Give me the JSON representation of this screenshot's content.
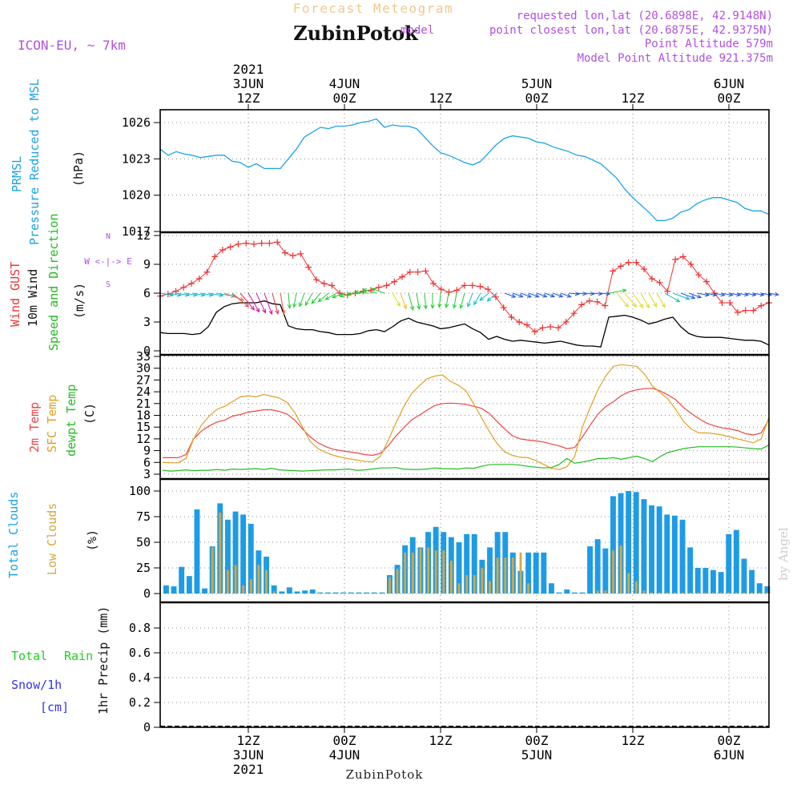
{
  "header": {
    "super_title": "Forecast Meteogram",
    "title": "ZubinPotok",
    "model": "ICON-EU, ~ 7km",
    "requested": "requested lon,lat (20.6898E, 42.9148N)",
    "closest": "point closest lon,lat (20.6875E, 42.9375N)",
    "point_alt": "Point Altitude 579m",
    "model_alt": "Model Point Altitude 921.375m",
    "overlap_text": "model",
    "watermark": "by Angel",
    "footer_name": "ZubinPotok"
  },
  "colors": {
    "pressure": "#1aa3e8",
    "gust": "#ee3333",
    "wind": "#000000",
    "t2m": "#ee4444",
    "tsfc": "#e0a020",
    "dewpt": "#22bb22",
    "total_cloud": "#1e9be6",
    "low_cloud": "#d4a840",
    "rain": "#22cc22",
    "snow": "#3333ee",
    "purple": "#b050e0",
    "grid": "#888888"
  },
  "time_axis": {
    "top_ticks": [
      {
        "t": 12,
        "lines": [
          "2021",
          "3JUN",
          "12Z"
        ]
      },
      {
        "t": 24,
        "lines": [
          "4JUN",
          "00Z"
        ]
      },
      {
        "t": 36,
        "lines": [
          "12Z"
        ]
      },
      {
        "t": 48,
        "lines": [
          "5JUN",
          "00Z"
        ]
      },
      {
        "t": 60,
        "lines": [
          "12Z"
        ]
      },
      {
        "t": 72,
        "lines": [
          "6JUN",
          "00Z"
        ]
      }
    ],
    "bottom_ticks": [
      {
        "t": 12,
        "lines": [
          "12Z",
          "3JUN",
          "2021"
        ]
      },
      {
        "t": 24,
        "lines": [
          "00Z",
          "4JUN"
        ]
      },
      {
        "t": 36,
        "lines": [
          "12Z"
        ]
      },
      {
        "t": 48,
        "lines": [
          "00Z",
          "5JUN"
        ]
      },
      {
        "t": 60,
        "lines": [
          "12Z"
        ]
      },
      {
        "t": 72,
        "lines": [
          "00Z",
          "6JUN"
        ]
      }
    ]
  },
  "panels": {
    "pressure": {
      "labels": [
        "PRMSL",
        "Pressure Reduced to MSL"
      ],
      "units": "(hPa)"
    },
    "wind": {
      "labels": [
        "Wind GUST",
        "10m Wind",
        "Speed and Direction"
      ],
      "units": "(m/s)",
      "compass": [
        "N",
        "W <-|-> E",
        "S"
      ]
    },
    "temp": {
      "labels": [
        "2m Temp",
        "SFC Temp",
        "dewpt Temp"
      ],
      "units": "(C)"
    },
    "cloud": {
      "labels": [
        "Total Clouds",
        "Low Clouds"
      ],
      "units": "(%)"
    },
    "precip": {
      "label_total": "Total",
      "label_rain": "Rain",
      "label_snow": "Snow/1h",
      "label_cm": "[cm]",
      "units": "1hr Precip (mm)"
    }
  },
  "chart_data": [
    {
      "type": "line",
      "title": "PRMSL Pressure Reduced to MSL",
      "ylabel": "(hPa)",
      "ylim": [
        1017,
        1027.5
      ],
      "yticks": [
        1017,
        1020,
        1023,
        1026
      ],
      "x_range": [
        1,
        77
      ],
      "series": [
        {
          "name": "PRMSL",
          "x": [
            1,
            2,
            3,
            4,
            5,
            6,
            7,
            8,
            9,
            10,
            11,
            12,
            13,
            14,
            15,
            16,
            17,
            18,
            19,
            20,
            21,
            22,
            23,
            24,
            25,
            26,
            27,
            28,
            29,
            30,
            31,
            32,
            33,
            34,
            35,
            36,
            37,
            38,
            39,
            40,
            41,
            42,
            43,
            44,
            45,
            46,
            47,
            48,
            49,
            50,
            51,
            52,
            53,
            54,
            55,
            56,
            57,
            58,
            59,
            60,
            61,
            62,
            63,
            64,
            65,
            66,
            67,
            68,
            69,
            70,
            71,
            72,
            73,
            74,
            75,
            76,
            77
          ],
          "values": [
            1023.8,
            1023.3,
            1023.6,
            1023.4,
            1023.3,
            1023.1,
            1023.2,
            1023.3,
            1023.3,
            1022.8,
            1022.7,
            1022.3,
            1022.6,
            1022.2,
            1022.2,
            1022.2,
            1023.0,
            1023.8,
            1024.8,
            1025.2,
            1025.6,
            1025.5,
            1025.7,
            1025.7,
            1025.8,
            1026.0,
            1026.1,
            1026.3,
            1025.6,
            1025.8,
            1025.7,
            1025.7,
            1025.5,
            1024.8,
            1024.1,
            1023.5,
            1023.3,
            1023.0,
            1022.7,
            1022.5,
            1022.8,
            1023.5,
            1024.2,
            1024.7,
            1024.9,
            1024.8,
            1024.7,
            1024.4,
            1024.3,
            1024.0,
            1023.8,
            1023.6,
            1023.3,
            1023.2,
            1022.9,
            1022.6,
            1022.0,
            1021.4,
            1020.5,
            1019.8,
            1019.2,
            1018.6,
            1017.9,
            1017.9,
            1018.1,
            1018.6,
            1018.8,
            1019.3,
            1019.6,
            1019.8,
            1019.8,
            1019.6,
            1019.4,
            1018.9,
            1018.7,
            1018.7,
            1018.4
          ]
        }
      ]
    },
    {
      "type": "line",
      "title": "Wind GUST / 10m Wind Speed and Direction",
      "ylabel": "(m/s)",
      "ylim": [
        0,
        12
      ],
      "yticks": [
        0,
        3,
        6,
        9,
        12
      ],
      "series": [
        {
          "name": "Wind GUST",
          "values": [
            5.7,
            5.9,
            6.2,
            6.6,
            7.0,
            7.5,
            8.2,
            9.8,
            10.5,
            10.8,
            11.1,
            11.2,
            11.1,
            11.2,
            11.2,
            11.3,
            10.2,
            9.9,
            10.1,
            8.7,
            7.4,
            7.0,
            6.8,
            6.0,
            5.8,
            6.0,
            6.2,
            6.3,
            6.6,
            6.8,
            7.2,
            7.7,
            8.2,
            8.2,
            8.3,
            7.0,
            6.4,
            6.1,
            6.3,
            6.8,
            6.8,
            6.7,
            6.4,
            5.6,
            4.5,
            3.5,
            3.0,
            2.7,
            2.0,
            2.4,
            2.5,
            2.4,
            3.0,
            3.9,
            4.8,
            5.2,
            5.1,
            4.7,
            8.3,
            8.8,
            9.2,
            9.2,
            8.5,
            7.5,
            7.1,
            6.2,
            9.5,
            9.8,
            9.0,
            7.9,
            7.2,
            6.0,
            5.0,
            5.0,
            4.0,
            4.2,
            4.2,
            4.7,
            5.0
          ]
        },
        {
          "name": "10m Wind",
          "values": [
            1.9,
            1.8,
            1.8,
            1.8,
            1.7,
            1.8,
            2.5,
            4.0,
            4.6,
            4.9,
            5.0,
            5.0,
            5.0,
            5.2,
            4.9,
            4.8,
            2.6,
            2.3,
            2.2,
            2.2,
            2.0,
            1.9,
            1.7,
            1.7,
            1.7,
            1.8,
            2.1,
            2.2,
            2.0,
            2.5,
            3.1,
            3.4,
            3.0,
            2.8,
            2.6,
            2.3,
            2.4,
            2.6,
            2.8,
            2.3,
            1.9,
            1.2,
            1.5,
            1.2,
            1.0,
            1.1,
            1.0,
            0.9,
            0.8,
            0.9,
            1.0,
            0.8,
            0.6,
            0.5,
            0.5,
            0.4,
            3.5,
            3.6,
            3.7,
            3.5,
            3.2,
            2.8,
            3.0,
            3.3,
            3.5,
            2.5,
            1.8,
            1.5,
            1.4,
            1.4,
            1.4,
            1.3,
            1.2,
            1.1,
            1.1,
            1.0,
            0.6
          ]
        }
      ],
      "wind_arrows": {
        "note": "direction (deg toward, clockwise from north) per hour",
        "dir": [
          100,
          100,
          100,
          100,
          100,
          100,
          100,
          100,
          110,
          130,
          140,
          150,
          155,
          160,
          165,
          170,
          175,
          190,
          200,
          210,
          220,
          230,
          240,
          250,
          255,
          265,
          275,
          285,
          290,
          150,
          160,
          165,
          170,
          175,
          180,
          185,
          190,
          190,
          195,
          200,
          210,
          230,
          230,
          110,
          110,
          110,
          110,
          110,
          110,
          110,
          110,
          95,
          95,
          95,
          95,
          95,
          80,
          140,
          140,
          145,
          150,
          150,
          150,
          120,
          110,
          110,
          110,
          100,
          100,
          100,
          100,
          100,
          100,
          100,
          100,
          100,
          100
        ],
        "color": [
          "#11bbcc",
          "#11bbcc",
          "#11bbcc",
          "#11bbcc",
          "#11bbcc",
          "#11bbcc",
          "#11bbcc",
          "#11bbcc",
          "#ee7722",
          "#ee4455",
          "#dd2266",
          "#cc1199",
          "#cc11aa",
          "#cc11aa",
          "#dd3355",
          "#ee5533",
          "#22cc33",
          "#22cc33",
          "#22cc33",
          "#22cc33",
          "#22cc33",
          "#22cc33",
          "#22cc33",
          "#22cc33",
          "#22cc33",
          "#22cc33",
          "#22cc33",
          "#22cc33",
          "#22cc33",
          "#dddd22",
          "#eebb22",
          "#22cc33",
          "#22cc33",
          "#22cc33",
          "#22cc33",
          "#22cc33",
          "#22cc33",
          "#22cc33",
          "#22cc33",
          "#11bbcc",
          "#11bbcc",
          "#11bbcc",
          "#11bbcc",
          "#2255dd",
          "#2255dd",
          "#2255dd",
          "#2255dd",
          "#2255dd",
          "#2255dd",
          "#2255dd",
          "#2255dd",
          "#2255dd",
          "#2255dd",
          "#2255dd",
          "#2255dd",
          "#2255dd",
          "#22cc33",
          "#dddd22",
          "#dddd22",
          "#dddd22",
          "#dddd22",
          "#dddd22",
          "#dddd22",
          "#11bbcc",
          "#11bbcc",
          "#2255dd",
          "#2255dd",
          "#2255dd",
          "#2255dd",
          "#2255dd",
          "#2255dd",
          "#2255dd",
          "#2255dd",
          "#2255dd",
          "#2255dd",
          "#2255dd",
          "#2255dd"
        ]
      }
    },
    {
      "type": "line",
      "title": "2m Temp / SFC Temp / dewpt Temp",
      "ylabel": "(C)",
      "ylim": [
        3,
        33
      ],
      "yticks": [
        3,
        6,
        9,
        12,
        15,
        18,
        21,
        24,
        27,
        30,
        33
      ],
      "series": [
        {
          "name": "2m Temp",
          "values": [
            7.2,
            7.2,
            7.2,
            8.0,
            12.0,
            14.0,
            15.3,
            16.3,
            16.8,
            17.8,
            18.2,
            18.8,
            19.1,
            19.4,
            19.4,
            19.0,
            18.3,
            16.8,
            14.5,
            12.5,
            11.0,
            10.0,
            9.3,
            9.0,
            8.7,
            8.4,
            8.0,
            7.8,
            8.3,
            10.2,
            12.7,
            14.8,
            16.8,
            18.0,
            19.3,
            20.5,
            21.0,
            21.1,
            21.0,
            20.8,
            20.3,
            19.8,
            18.5,
            16.5,
            14.5,
            12.8,
            12.0,
            11.7,
            11.5,
            11.2,
            10.7,
            10.2,
            9.5,
            9.8,
            12.5,
            15.5,
            18.3,
            20.2,
            21.5,
            23.0,
            24.0,
            24.5,
            24.8,
            24.9,
            24.2,
            23.2,
            22.0,
            20.0,
            18.5,
            17.1,
            16.0,
            15.3,
            14.8,
            14.5,
            14.1,
            13.3,
            13.0,
            13.5,
            17.0
          ]
        },
        {
          "name": "SFC Temp",
          "values": [
            6.0,
            5.9,
            5.9,
            7.0,
            12.0,
            15.5,
            17.8,
            19.5,
            20.3,
            21.5,
            22.7,
            23.0,
            22.7,
            23.3,
            22.9,
            22.4,
            21.3,
            18.7,
            15.0,
            11.3,
            9.5,
            8.5,
            7.8,
            7.3,
            6.9,
            6.6,
            6.3,
            6.1,
            7.5,
            11.5,
            16.0,
            20.1,
            23.5,
            25.5,
            27.3,
            28.0,
            28.3,
            26.7,
            25.7,
            24.3,
            21.0,
            17.5,
            14.0,
            10.9,
            8.7,
            7.8,
            7.3,
            7.2,
            6.5,
            5.5,
            4.5,
            4.2,
            4.9,
            7.5,
            15.0,
            20.0,
            24.5,
            28.0,
            30.5,
            30.9,
            30.7,
            30.5,
            28.5,
            25.5,
            23.8,
            22.2,
            19.5,
            16.5,
            14.5,
            13.5,
            13.5,
            13.3,
            13.0,
            12.5,
            12.0,
            11.5,
            11.0,
            12.0,
            17.5
          ]
        },
        {
          "name": "dewpt Temp",
          "values": [
            4.0,
            3.8,
            3.9,
            4.1,
            3.9,
            4.0,
            4.0,
            4.2,
            4.0,
            4.3,
            4.2,
            4.3,
            4.4,
            4.2,
            4.5,
            4.1,
            4.0,
            3.9,
            3.8,
            3.9,
            4.0,
            4.1,
            4.1,
            4.2,
            4.3,
            4.0,
            4.1,
            4.3,
            4.6,
            4.6,
            4.7,
            4.3,
            4.2,
            4.2,
            4.3,
            4.6,
            4.4,
            4.4,
            4.3,
            4.6,
            4.5,
            5.0,
            5.4,
            5.5,
            5.5,
            5.5,
            5.3,
            5.0,
            4.8,
            4.6,
            4.7,
            5.5,
            7.0,
            5.8,
            6.1,
            6.5,
            7.0,
            7.0,
            7.2,
            6.8,
            7.2,
            7.6,
            7.0,
            6.2,
            7.5,
            8.5,
            9.0,
            9.5,
            9.8,
            10.0,
            10.0,
            10.0,
            10.0,
            10.0,
            9.9,
            9.7,
            9.5,
            9.4,
            10.5
          ]
        }
      ]
    },
    {
      "type": "bar",
      "title": "Total Clouds / Low Clouds",
      "ylabel": "(%)",
      "ylim": [
        0,
        100
      ],
      "yticks": [
        0,
        25,
        50,
        75,
        100
      ],
      "series": [
        {
          "name": "Total Clouds",
          "values": [
            8,
            7,
            26,
            17,
            82,
            5,
            46,
            88,
            72,
            80,
            77,
            68,
            42,
            36,
            8,
            2,
            6,
            2,
            3,
            4,
            1,
            1,
            1,
            1,
            1,
            1,
            1,
            1,
            1,
            18,
            28,
            47,
            55,
            45,
            60,
            65,
            60,
            55,
            50,
            58,
            58,
            33,
            45,
            60,
            60,
            40,
            22,
            40,
            40,
            40,
            10,
            1,
            4,
            1,
            1,
            46,
            53,
            44,
            95,
            98,
            100,
            99,
            92,
            86,
            85,
            77,
            76,
            72,
            45,
            25,
            25,
            23,
            21,
            58,
            62,
            34,
            23,
            10,
            7
          ]
        },
        {
          "name": "Low Clouds",
          "values": [
            0,
            0,
            0,
            0,
            0,
            0,
            45,
            79,
            23,
            28,
            8,
            14,
            28,
            23,
            2,
            0,
            0,
            0,
            0,
            0,
            0,
            0,
            0,
            0,
            0,
            0,
            0,
            0,
            0,
            16,
            24,
            40,
            40,
            44,
            45,
            42,
            42,
            32,
            10,
            18,
            18,
            25,
            12,
            35,
            35,
            35,
            40,
            10,
            0,
            0,
            0,
            0,
            0,
            0,
            0,
            0,
            3,
            3,
            42,
            47,
            20,
            12,
            3,
            1,
            1,
            1,
            1,
            1,
            1,
            1,
            1,
            1,
            1,
            1,
            1,
            1,
            1,
            1,
            1
          ]
        }
      ]
    },
    {
      "type": "bar",
      "title": "1hr Precip",
      "ylabel": "1hr Precip (mm)",
      "ylim": [
        0,
        1
      ],
      "yticks": [
        0,
        0.2,
        0.4,
        0.6,
        0.8
      ],
      "series": [
        {
          "name": "Total Rain",
          "values": []
        },
        {
          "name": "Snow/1h",
          "values": []
        }
      ]
    }
  ]
}
